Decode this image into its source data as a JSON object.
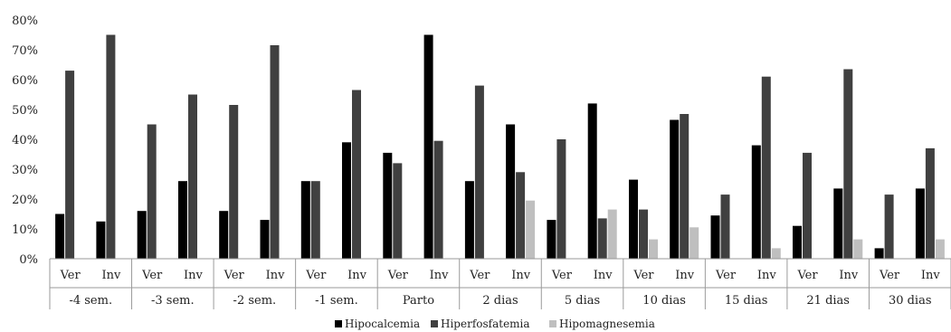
{
  "chart_data": {
    "type": "bar",
    "groups": [
      "-4 sem.",
      "-3 sem.",
      "-2 sem.",
      "-1 sem.",
      "Parto",
      "2 dias",
      "5 dias",
      "10 dias",
      "15 dias",
      "21 dias",
      "30 dias"
    ],
    "subcategories": [
      "Ver",
      "Inv"
    ],
    "ylim": [
      0,
      80
    ],
    "yticks": [
      "0%",
      "10%",
      "20%",
      "30%",
      "40%",
      "50%",
      "60%",
      "70%",
      "80%"
    ],
    "legend_position": "bottom",
    "series": [
      {
        "name": "Hipocalcemia",
        "color": "#000000",
        "values": [
          15,
          12.5,
          16,
          26,
          16,
          13,
          26,
          39,
          35.5,
          75,
          26,
          45,
          13,
          52,
          26.5,
          46.5,
          14.5,
          38,
          11,
          23.5,
          3.5,
          23.5
        ]
      },
      {
        "name": "Hiperfosfatemia",
        "color": "#404040",
        "values": [
          63,
          75,
          45,
          55,
          51.5,
          71.5,
          26,
          56.5,
          32,
          39.5,
          58,
          29,
          40,
          13.5,
          16.5,
          48.5,
          21.5,
          61,
          35.5,
          63.5,
          21.5,
          37
        ]
      },
      {
        "name": "Hipomagnesemia",
        "color": "#bfbfbf",
        "values": [
          0,
          0,
          0,
          0,
          0,
          0,
          0,
          0,
          0,
          0,
          0,
          19.5,
          0,
          16.5,
          6.5,
          10.5,
          0,
          3.5,
          0,
          6.5,
          0,
          6.5
        ]
      }
    ]
  }
}
